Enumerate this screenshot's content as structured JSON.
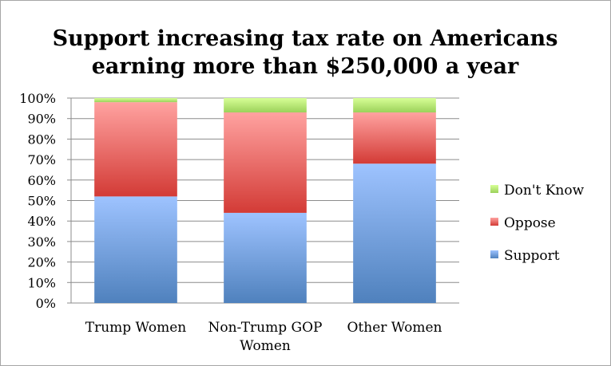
{
  "chart_data": {
    "type": "bar",
    "stacked": true,
    "percent": true,
    "title_lines": [
      "Support increasing tax rate on Americans",
      "earning more than $250,000 a year"
    ],
    "categories": [
      [
        "Trump Women"
      ],
      [
        "Non-Trump GOP",
        "Women"
      ],
      [
        "Other Women"
      ]
    ],
    "series": [
      {
        "name": "Support",
        "values": [
          52,
          44,
          68
        ],
        "color": "#4f81bd",
        "color_light": "#9ec3ff"
      },
      {
        "name": "Oppose",
        "values": [
          46,
          49,
          25
        ],
        "color": "#d33b36",
        "color_light": "#ffa2a0"
      },
      {
        "name": "Don't Know",
        "values": [
          2,
          7,
          7
        ],
        "color": "#9bd15a",
        "color_light": "#d7ff96"
      }
    ],
    "legend_order": [
      "Don't Know",
      "Oppose",
      "Support"
    ],
    "legend_position": "right",
    "ylim": [
      0,
      100
    ],
    "yticks": [
      "0%",
      "10%",
      "20%",
      "30%",
      "40%",
      "50%",
      "60%",
      "70%",
      "80%",
      "90%",
      "100%"
    ],
    "grid": true
  }
}
